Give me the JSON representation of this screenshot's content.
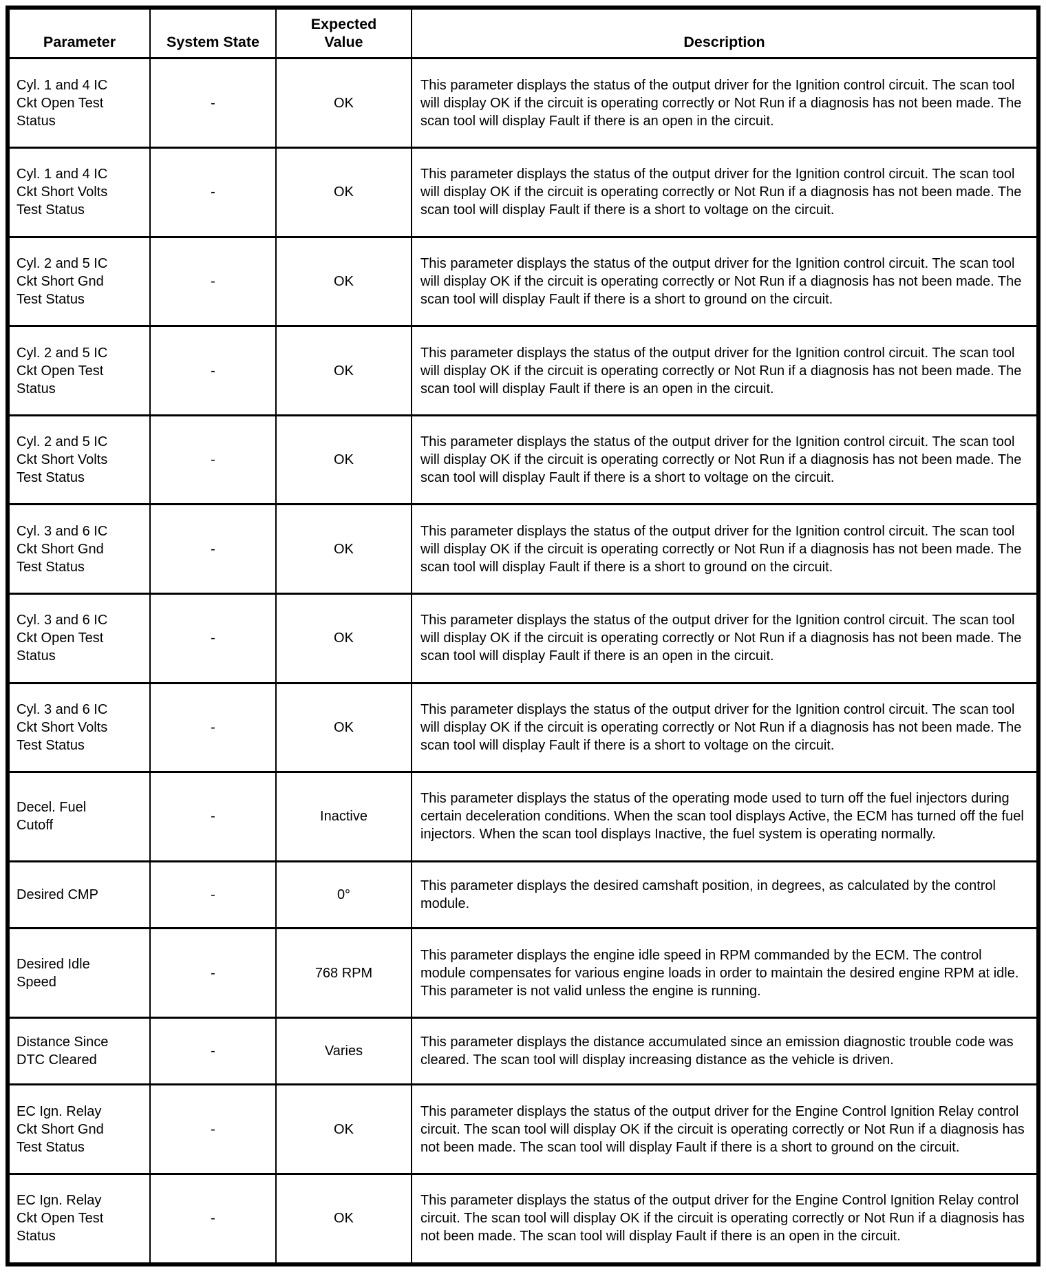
{
  "page": {
    "background_color": "#ffffff",
    "text_color": "#000000",
    "border_color": "#000000"
  },
  "table": {
    "headers": {
      "parameter": "Parameter",
      "system_state": "System State",
      "expected_value": "Expected\nValue",
      "description": "Description"
    },
    "rows": [
      {
        "parameter": "Cyl. 1 and 4 IC\nCkt Open Test\nStatus",
        "system_state": "-",
        "expected_value": "OK",
        "description": "This parameter displays the status of the output driver for the Ignition control circuit. The scan tool will display OK if the circuit is operating correctly or Not Run if a diagnosis has not been made. The scan tool will display Fault if there is an open in the circuit."
      },
      {
        "parameter": "Cyl. 1 and 4 IC\nCkt Short Volts\nTest Status",
        "system_state": "-",
        "expected_value": "OK",
        "description": "This parameter displays the status of the output driver for the Ignition control circuit. The scan tool will display OK if the circuit is operating correctly or Not Run if a diagnosis has not been made. The scan tool will display Fault if there is a short to voltage on the circuit."
      },
      {
        "parameter": "Cyl. 2 and 5 IC\nCkt Short Gnd\nTest Status",
        "system_state": "-",
        "expected_value": "OK",
        "description": "This parameter displays the status of the output driver for the Ignition control circuit. The scan tool will display OK if the circuit is operating correctly or Not Run if a diagnosis has not been made. The scan tool will display Fault if there is a short to ground on the circuit."
      },
      {
        "parameter": "Cyl. 2 and 5 IC\nCkt Open Test\nStatus",
        "system_state": "-",
        "expected_value": "OK",
        "description": "This parameter displays the status of the output driver for the Ignition control circuit. The scan tool will display OK if the circuit is operating correctly or Not Run if a diagnosis has not been made. The scan tool will display Fault if there is an open in the circuit."
      },
      {
        "parameter": "Cyl. 2 and 5 IC\nCkt Short Volts\nTest Status",
        "system_state": "-",
        "expected_value": "OK",
        "description": "This parameter displays the status of the output driver for the Ignition control circuit. The scan tool will display OK if the circuit is operating correctly or Not Run if a diagnosis has not been made. The scan tool will display Fault if there is a short to voltage on the circuit."
      },
      {
        "parameter": "Cyl. 3 and 6 IC\nCkt Short Gnd\nTest Status",
        "system_state": "-",
        "expected_value": "OK",
        "description": "This parameter displays the status of the output driver for the Ignition control circuit. The scan tool will display OK if the circuit is operating correctly or Not Run if a diagnosis has not been made. The scan tool will display Fault if there is a short to ground on the circuit."
      },
      {
        "parameter": "Cyl. 3 and 6 IC\nCkt Open Test\nStatus",
        "system_state": "-",
        "expected_value": "OK",
        "description": "This parameter displays the status of the output driver for the Ignition control circuit. The scan tool will display OK if the circuit is operating correctly or Not Run if a diagnosis has not been made. The scan tool will display Fault if there is an open in the circuit."
      },
      {
        "parameter": "Cyl. 3 and 6 IC\nCkt Short Volts\nTest Status",
        "system_state": "-",
        "expected_value": "OK",
        "description": "This parameter displays the status of the output driver for the Ignition control circuit. The scan tool will display OK if the circuit is operating correctly or Not Run if a diagnosis has not been made. The scan tool will display Fault if there is a short to voltage on the circuit."
      },
      {
        "parameter": "Decel. Fuel\nCutoff",
        "system_state": "-",
        "expected_value": "Inactive",
        "description": "This parameter displays the status of the operating mode used to turn off the fuel injectors during certain deceleration conditions. When the scan tool displays Active, the ECM has turned off the fuel injectors. When the scan tool displays Inactive, the fuel system is operating normally."
      },
      {
        "parameter": "Desired CMP",
        "system_state": "-",
        "expected_value": "0°",
        "description": "This parameter displays the desired camshaft position, in degrees, as calculated by the control module."
      },
      {
        "parameter": "Desired Idle\nSpeed",
        "system_state": "-",
        "expected_value": "768 RPM",
        "description": "This parameter displays the engine idle speed in RPM commanded by the ECM. The control module compensates for various engine loads in order to maintain the desired engine RPM at idle. This parameter is not valid unless the engine is running."
      },
      {
        "parameter": "Distance Since\nDTC Cleared",
        "system_state": "-",
        "expected_value": "Varies",
        "description": "This parameter displays the distance accumulated since an emission diagnostic trouble code was cleared. The scan tool will display increasing distance as the vehicle is driven."
      },
      {
        "parameter": "EC Ign. Relay\nCkt Short Gnd\nTest Status",
        "system_state": "-",
        "expected_value": "OK",
        "description": "This parameter displays the status of the output driver for the Engine Control Ignition Relay control circuit. The scan tool will display OK if the circuit is operating correctly or Not Run if a diagnosis has not been made. The scan tool will display Fault if there is a short to ground on the circuit."
      },
      {
        "parameter": "EC Ign. Relay\nCkt Open Test\nStatus",
        "system_state": "-",
        "expected_value": "OK",
        "description": "This parameter displays the status of the output driver for the Engine Control Ignition Relay control circuit. The scan tool will display OK if the circuit is operating correctly or Not Run if a diagnosis has not been made. The scan tool will display Fault if there is an open in the circuit."
      }
    ]
  }
}
